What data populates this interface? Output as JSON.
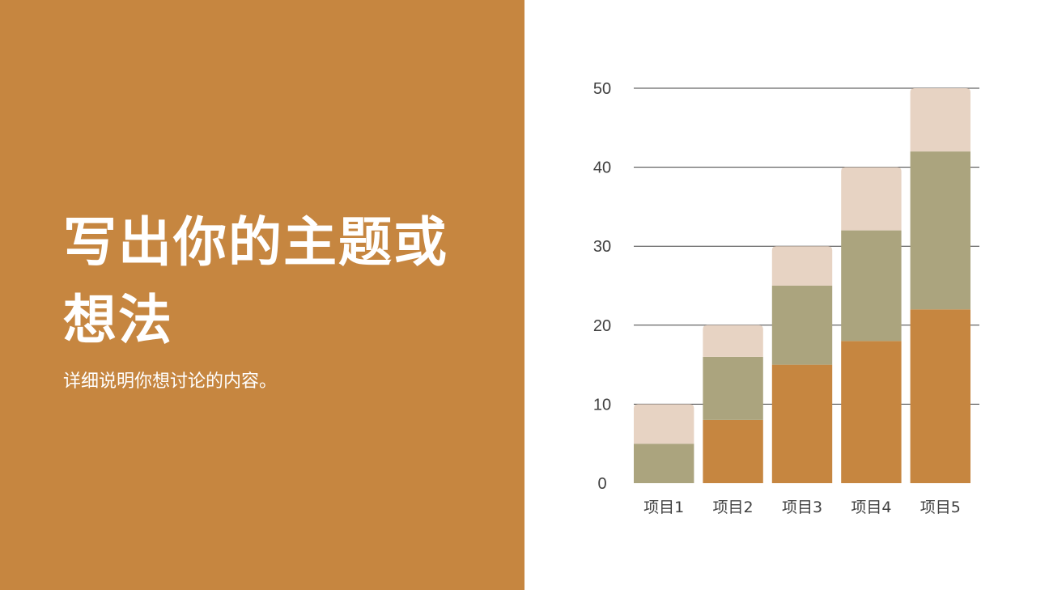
{
  "slide": {
    "title": "写出你的主题或想法",
    "subtitle": "详细说明你想讨论的内容。"
  },
  "colors": {
    "panel": "#C68640",
    "series": [
      "#C68640",
      "#ABA47E",
      "#E7D3C3"
    ],
    "grid": "#404040",
    "text": "#404040"
  },
  "chart_data": {
    "type": "bar",
    "stacked": true,
    "categories": [
      "项目1",
      "项目2",
      "项目3",
      "项目4",
      "项目5"
    ],
    "series": [
      {
        "values": [
          0,
          8,
          15,
          18,
          22
        ]
      },
      {
        "values": [
          5,
          8,
          10,
          14,
          20
        ]
      },
      {
        "values": [
          5,
          4,
          5,
          8,
          8
        ]
      }
    ],
    "ylim": [
      0,
      50
    ],
    "yticks": [
      0,
      10,
      20,
      30,
      40,
      50
    ],
    "grid": true,
    "legend": "none",
    "title": "",
    "xlabel": "",
    "ylabel": ""
  }
}
